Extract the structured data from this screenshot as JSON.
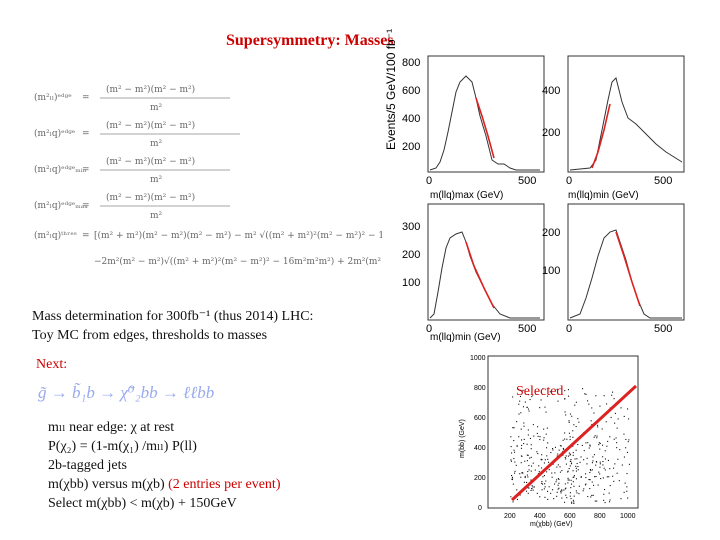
{
  "title": "Supersymmetry: Masses",
  "formulas": {
    "labels": [
      "(m²ₗₗ)ᵉᵈᵍᵉ",
      "(m²ₗq)ᵉᵈᵍᵉ",
      "(m²ₗq)ᵉᵈᵍᵉₘᵢₙ",
      "(m²ₗq)ᵉᵈᵍᵉₘₐₓ",
      "(m²ₗq)ᵗʰʳᵉˢ"
    ]
  },
  "paragraph": {
    "line1": "Mass determination for 300fb⁻¹ (thus 2014) LHC:",
    "line2": "Toy MC from edges, thresholds to masses"
  },
  "next_label": "Next:",
  "decay_chain": "g̃ → b̃₁b → χ̃⁰₂bb → ℓℓbb",
  "bullets": {
    "line1": "mₗₗ near edge: χ at rest",
    "line2": "P(χ₂) = (1-m(χ₁) /mₗₗ) P(ll)",
    "line3": "2b-tagged jets",
    "line4_main": "m(χbb) versus m(χb)",
    "line4_paren": "(2 entries per event)",
    "line5": "Select m(χbb) < m(χb) + 150GeV"
  },
  "histograms": {
    "ylabel": "Events/5 GeV/100 fb⁻¹",
    "panels": [
      {
        "xlabel": "m(llq)max (GeV)",
        "yticks": [
          "200",
          "400",
          "600",
          "800"
        ],
        "xticks": [
          "0",
          "500"
        ]
      },
      {
        "xlabel": "m(llq)min (GeV)",
        "yticks": [
          "200",
          "400"
        ],
        "xticks": [
          "0",
          "500"
        ]
      },
      {
        "xlabel": "m(llq)min (GeV)",
        "yticks": [
          "100",
          "200",
          "300"
        ],
        "xticks": [
          "0",
          "500"
        ]
      },
      {
        "xlabel": "",
        "yticks": [
          "100",
          "200"
        ],
        "xticks": [
          "0",
          "500"
        ]
      }
    ]
  },
  "scatter": {
    "ylabel": "m(bb) (GeV)",
    "xlabel": "m(χbb) (GeV)",
    "yticks": [
      "0",
      "200",
      "400",
      "600",
      "800",
      "1000"
    ],
    "xticks": [
      "200",
      "400",
      "600",
      "800",
      "1000"
    ],
    "selected_label": "Selected"
  },
  "colors": {
    "accent_red": "#cc0000",
    "chain_blue": "#99aaee"
  }
}
